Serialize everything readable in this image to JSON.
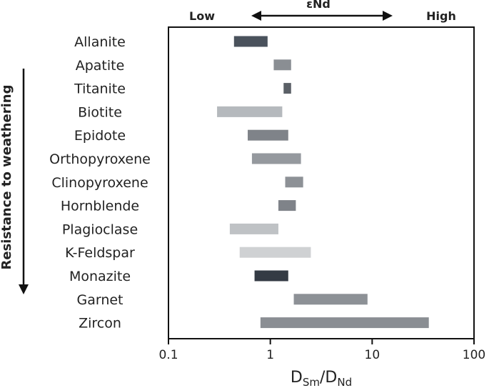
{
  "chart_data": {
    "type": "bar",
    "orientation": "horizontal-range",
    "x_scale": "log",
    "xlim": [
      0.1,
      100
    ],
    "x_ticks": [
      "0.1",
      "1",
      "10",
      "100"
    ],
    "xlabel": {
      "main": "D",
      "sub1": "Sm",
      "slash": "/",
      "main2": "D",
      "sub2": "Nd"
    },
    "top_arrow": {
      "label": "εNd",
      "left": "Low",
      "right": "High"
    },
    "side_label": "Resistance to weathering",
    "categories": [
      "Allanite",
      "Apatite",
      "Titanite",
      "Biotite",
      "Epidote",
      "Orthopyroxene",
      "Clinopyroxene",
      "Hornblende",
      "Plagioclase",
      "K-Feldspar",
      "Monazite",
      "Garnet",
      "Zircon"
    ],
    "ranges": [
      [
        0.44,
        0.94
      ],
      [
        1.08,
        1.6
      ],
      [
        1.35,
        1.6
      ],
      [
        0.3,
        1.31
      ],
      [
        0.6,
        1.5
      ],
      [
        0.66,
        2.0
      ],
      [
        1.4,
        2.1
      ],
      [
        1.2,
        1.78
      ],
      [
        0.4,
        1.2
      ],
      [
        0.5,
        2.5
      ],
      [
        0.7,
        1.5
      ],
      [
        1.7,
        9.0
      ],
      [
        0.8,
        36.0
      ]
    ],
    "colors": [
      "#4a525c",
      "#8a8e93",
      "#5b6067",
      "#b5b9bd",
      "#7f8389",
      "#95999e",
      "#8d9196",
      "#7f8389",
      "#bfc2c5",
      "#cfd1d3",
      "#343b44",
      "#8d9196",
      "#8a8e93"
    ]
  }
}
